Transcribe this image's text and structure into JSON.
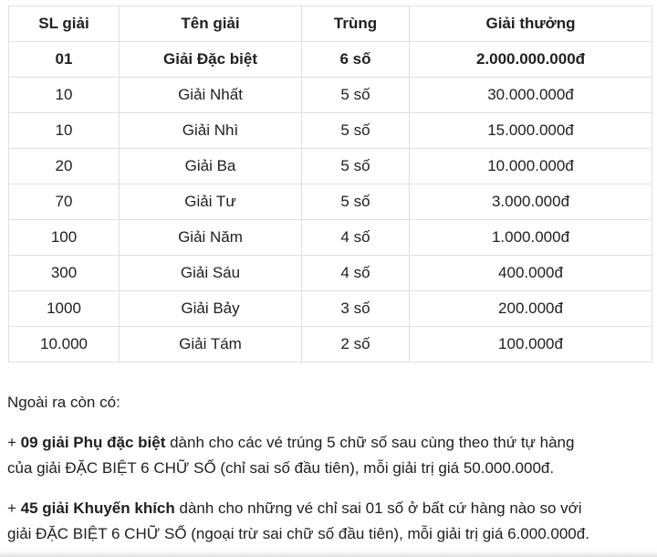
{
  "colors": {
    "background": "#ffffff",
    "table_border": "#e0e0e0",
    "text": "#212121"
  },
  "table": {
    "headers": [
      "SL giải",
      "Tên giải",
      "Trùng",
      "Giải thưởng"
    ],
    "rows": [
      {
        "qty": "01",
        "name": "Giải Đặc biệt",
        "match": "6 số",
        "prize": "2.000.000.000đ",
        "emphasis": true
      },
      {
        "qty": "10",
        "name": "Giải Nhất",
        "match": "5 số",
        "prize": "30.000.000đ",
        "emphasis": false
      },
      {
        "qty": "10",
        "name": "Giải Nhì",
        "match": "5 số",
        "prize": "15.000.000đ",
        "emphasis": false
      },
      {
        "qty": "20",
        "name": "Giải Ba",
        "match": "5 số",
        "prize": "10.000.000đ",
        "emphasis": false
      },
      {
        "qty": "70",
        "name": "Giải Tư",
        "match": "5 số",
        "prize": "3.000.000đ",
        "emphasis": false
      },
      {
        "qty": "100",
        "name": "Giải Năm",
        "match": "4 số",
        "prize": "1.000.000đ",
        "emphasis": false
      },
      {
        "qty": "300",
        "name": "Giải Sáu",
        "match": "4 số",
        "prize": "400.000đ",
        "emphasis": false
      },
      {
        "qty": "1000",
        "name": "Giải Bảy",
        "match": "3 số",
        "prize": "200.000đ",
        "emphasis": false
      },
      {
        "qty": "10.000",
        "name": "Giải Tám",
        "match": "2 số",
        "prize": "100.000đ",
        "emphasis": false
      }
    ]
  },
  "notes": {
    "intro": "Ngoài ra còn có:",
    "items": [
      {
        "prefix": "+ ",
        "bold": "09 giải Phụ đặc biệt",
        "rest_line1": " dành cho các vé trúng 5 chữ số sau cùng theo thứ tự hàng",
        "rest_line2": "của giải ĐẶC BIỆT 6 CHỮ SỐ (chỉ sai số đầu tiên), mỗi giải trị giá 50.000.000đ."
      },
      {
        "prefix": "+ ",
        "bold": "45 giải Khuyến khích",
        "rest_line1": " dành cho những vé chỉ sai 01 số ở bất cứ hàng nào so với",
        "rest_line2": "giải ĐẶC BIỆT 6 CHỮ SỐ (ngoại trừ sai chữ số đầu tiên), mỗi giải trị giá 6.000.000đ."
      }
    ]
  }
}
